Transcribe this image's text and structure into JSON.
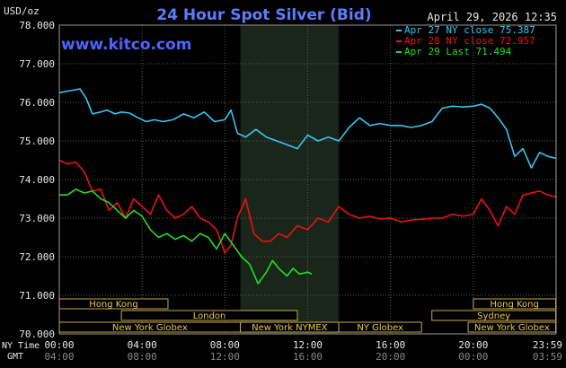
{
  "chart_data": {
    "type": "line",
    "title": "24 Hour Spot Silver (Bid)",
    "date_label": "April 29, 2026 12:35",
    "watermark": "www.kitco.com",
    "ylabel": "USD/oz",
    "ylim": [
      70.0,
      78.0
    ],
    "y_ticks": [
      "78.000",
      "77.000",
      "76.000",
      "75.000",
      "74.000",
      "73.000",
      "72.000",
      "71.000",
      "70.000"
    ],
    "xlim": [
      0,
      24
    ],
    "x_ticks_ny": [
      "00:00",
      "04:00",
      "08:00",
      "12:00",
      "16:00",
      "20:00",
      "23:59"
    ],
    "x_ticks_gmt": [
      "04:00",
      "08:00",
      "12:00",
      "16:00",
      "20:00",
      "00:00",
      "03:59"
    ],
    "x_tick_hours": [
      0,
      4,
      8,
      12,
      16,
      20,
      23.983
    ],
    "x_row_labels": {
      "ny": "NY Time",
      "gmt": "GMT"
    },
    "shaded_session": {
      "label": "New York NYMEX",
      "start": 8.75,
      "end": 13.5
    },
    "grid": true,
    "legend_position": "top-right",
    "series": [
      {
        "name": "Apr 27 NY close 75.387",
        "color": "#35c6f2",
        "x": [
          0,
          0.5,
          1,
          1.3,
          1.6,
          2,
          2.3,
          2.7,
          3,
          3.4,
          3.8,
          4.2,
          4.6,
          5,
          5.5,
          6,
          6.5,
          7,
          7.5,
          8,
          8.3,
          8.6,
          9,
          9.5,
          10,
          10.5,
          11,
          11.5,
          12,
          12.5,
          13,
          13.5,
          14,
          14.5,
          15,
          15.5,
          16,
          16.5,
          17,
          17.5,
          18,
          18.5,
          19,
          19.5,
          20,
          20.4,
          20.8,
          21.2,
          21.6,
          22,
          22.4,
          22.8,
          23.2,
          23.6,
          23.98
        ],
        "y": [
          76.25,
          76.3,
          76.35,
          76.1,
          75.7,
          75.75,
          75.8,
          75.7,
          75.75,
          75.72,
          75.6,
          75.5,
          75.55,
          75.5,
          75.55,
          75.7,
          75.6,
          75.75,
          75.5,
          75.55,
          75.8,
          75.2,
          75.1,
          75.3,
          75.1,
          75.0,
          74.9,
          74.8,
          75.15,
          75.0,
          75.1,
          75.0,
          75.35,
          75.6,
          75.4,
          75.45,
          75.4,
          75.4,
          75.35,
          75.4,
          75.5,
          75.85,
          75.9,
          75.88,
          75.9,
          75.95,
          75.85,
          75.6,
          75.3,
          74.6,
          74.8,
          74.3,
          74.7,
          74.6,
          74.55
        ]
      },
      {
        "name": "Apr 28 NY close 72.957",
        "color": "#ee1111",
        "x": [
          0,
          0.4,
          0.8,
          1.2,
          1.6,
          2,
          2.4,
          2.8,
          3.2,
          3.6,
          4,
          4.4,
          4.8,
          5.2,
          5.6,
          6,
          6.4,
          6.8,
          7.2,
          7.6,
          8,
          8.3,
          8.6,
          9,
          9.4,
          9.8,
          10.2,
          10.6,
          11,
          11.5,
          12,
          12.5,
          13,
          13.5,
          14,
          14.5,
          15,
          15.5,
          16,
          16.5,
          17,
          17.5,
          18,
          18.5,
          19,
          19.5,
          20,
          20.4,
          20.8,
          21.2,
          21.6,
          22,
          22.4,
          22.8,
          23.2,
          23.6,
          23.98
        ],
        "y": [
          74.5,
          74.4,
          74.45,
          74.2,
          73.7,
          73.75,
          73.2,
          73.4,
          73.0,
          73.5,
          73.3,
          73.1,
          73.6,
          73.2,
          73.0,
          73.1,
          73.3,
          73.0,
          72.9,
          72.7,
          72.1,
          72.3,
          73.0,
          73.5,
          72.6,
          72.4,
          72.4,
          72.6,
          72.5,
          72.8,
          72.7,
          73.0,
          72.9,
          73.3,
          73.1,
          73.0,
          73.05,
          72.98,
          73.0,
          72.9,
          72.95,
          72.97,
          73.0,
          73.0,
          73.1,
          73.05,
          73.1,
          73.5,
          73.2,
          72.8,
          73.3,
          73.1,
          73.6,
          73.65,
          73.7,
          73.6,
          73.55
        ]
      },
      {
        "name": "Apr 29 Last 71.494",
        "color": "#22dd22",
        "x": [
          0,
          0.4,
          0.8,
          1.2,
          1.6,
          2,
          2.4,
          2.8,
          3.2,
          3.6,
          4,
          4.4,
          4.8,
          5.2,
          5.6,
          6,
          6.4,
          6.8,
          7.2,
          7.6,
          8,
          8.4,
          8.8,
          9.2,
          9.6,
          10,
          10.3,
          10.6,
          11,
          11.3,
          11.6,
          12,
          12.2
        ],
        "y": [
          73.6,
          73.6,
          73.75,
          73.65,
          73.7,
          73.5,
          73.4,
          73.2,
          73.0,
          73.2,
          73.05,
          72.7,
          72.5,
          72.6,
          72.45,
          72.55,
          72.4,
          72.6,
          72.5,
          72.2,
          72.6,
          72.3,
          72.0,
          71.8,
          71.3,
          71.6,
          71.9,
          71.7,
          71.5,
          71.7,
          71.55,
          71.6,
          71.55
        ]
      }
    ],
    "sessions": [
      {
        "label": "Hong Kong",
        "row": 0,
        "start": 0,
        "end": 5.25
      },
      {
        "label": "Hong Kong",
        "row": 0,
        "start": 20.0,
        "end": 23.98
      },
      {
        "label": "London",
        "row": 1,
        "start": 3.0,
        "end": 11.5
      },
      {
        "label": "Sydney",
        "row": 1,
        "start": 18.0,
        "end": 23.98
      },
      {
        "label": "New York Globex",
        "row": 2,
        "start": 0,
        "end": 8.75
      },
      {
        "label": "New York NYMEX",
        "row": 2,
        "start": 8.75,
        "end": 13.5
      },
      {
        "label": "NY Globex",
        "row": 2,
        "start": 13.5,
        "end": 17.5
      },
      {
        "label": "New York Globex",
        "row": 2,
        "start": 19.75,
        "end": 23.98
      }
    ]
  }
}
